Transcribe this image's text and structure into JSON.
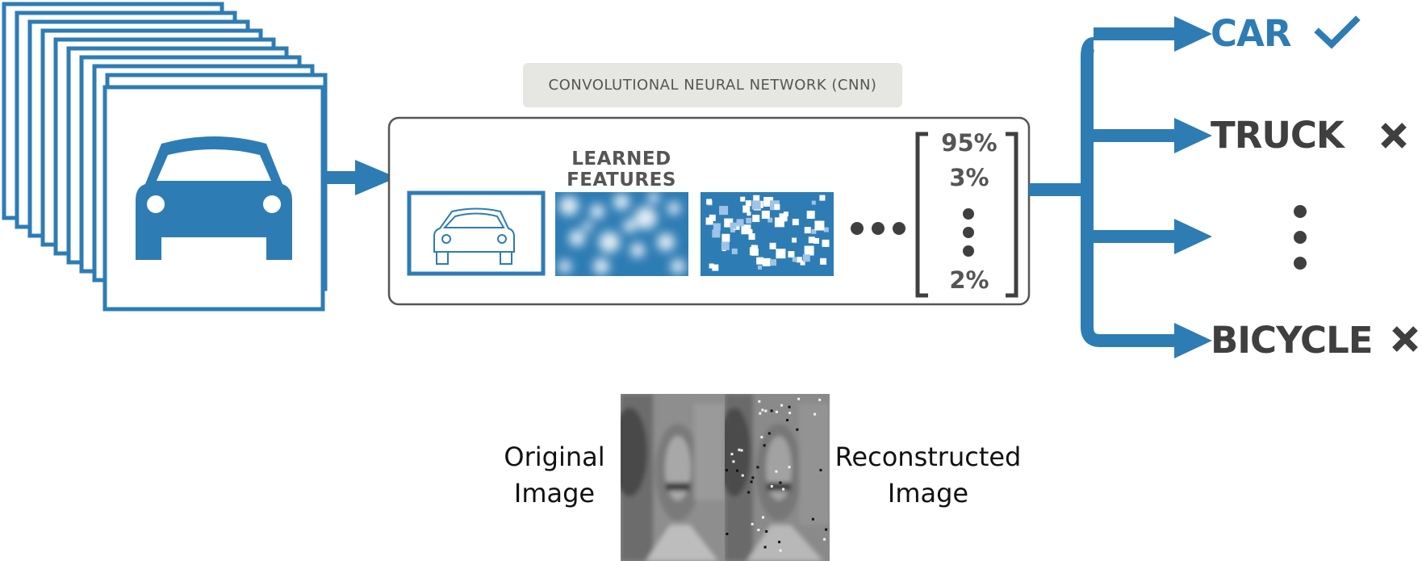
{
  "cnn_label": "CONVOLUTIONAL NEURAL NETWORK (CNN)",
  "features_title": "LEARNED FEATURES",
  "probabilities": {
    "top": "95%",
    "second": "3%",
    "bottom": "2%"
  },
  "classes": {
    "car": "CAR",
    "truck": "TRUCK",
    "bicycle": "BICYCLE"
  },
  "captions": {
    "original_line1": "Original",
    "original_line2": "Image",
    "reconstructed_line1": "Reconstructed",
    "reconstructed_line2": "Image"
  },
  "icons": {
    "input": "car-icon",
    "feature1": "car-outline-icon",
    "correct": "checkmark-icon",
    "wrong": "cross-icon"
  },
  "colors": {
    "accent": "#2e7cb4",
    "dark": "#3f3f3f",
    "label_bg": "#e6e6e3"
  }
}
